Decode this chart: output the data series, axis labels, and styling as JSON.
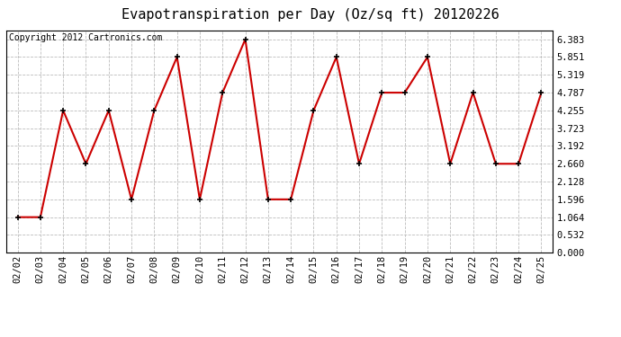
{
  "title": "Evapotranspiration per Day (Oz/sq ft) 20120226",
  "copyright": "Copyright 2012 Cartronics.com",
  "dates": [
    "02/02",
    "02/03",
    "02/04",
    "02/05",
    "02/06",
    "02/07",
    "02/08",
    "02/09",
    "02/10",
    "02/11",
    "02/12",
    "02/13",
    "02/14",
    "02/15",
    "02/16",
    "02/17",
    "02/18",
    "02/19",
    "02/20",
    "02/21",
    "02/22",
    "02/23",
    "02/24",
    "02/25"
  ],
  "values": [
    1.064,
    1.064,
    4.255,
    2.66,
    4.255,
    1.596,
    4.255,
    5.851,
    1.596,
    4.787,
    6.383,
    1.596,
    1.596,
    4.255,
    5.851,
    2.66,
    4.787,
    4.787,
    5.851,
    2.66,
    4.787,
    2.66,
    2.66,
    4.787
  ],
  "yticks": [
    0.0,
    0.532,
    1.064,
    1.596,
    2.128,
    2.66,
    3.192,
    3.723,
    4.255,
    4.787,
    5.319,
    5.851,
    6.383
  ],
  "ylim": [
    0.0,
    6.65
  ],
  "line_color": "#cc0000",
  "marker_color": "#000000",
  "bg_color": "#ffffff",
  "grid_color": "#bbbbbb",
  "title_fontsize": 11,
  "copyright_fontsize": 7,
  "tick_fontsize": 7.5
}
